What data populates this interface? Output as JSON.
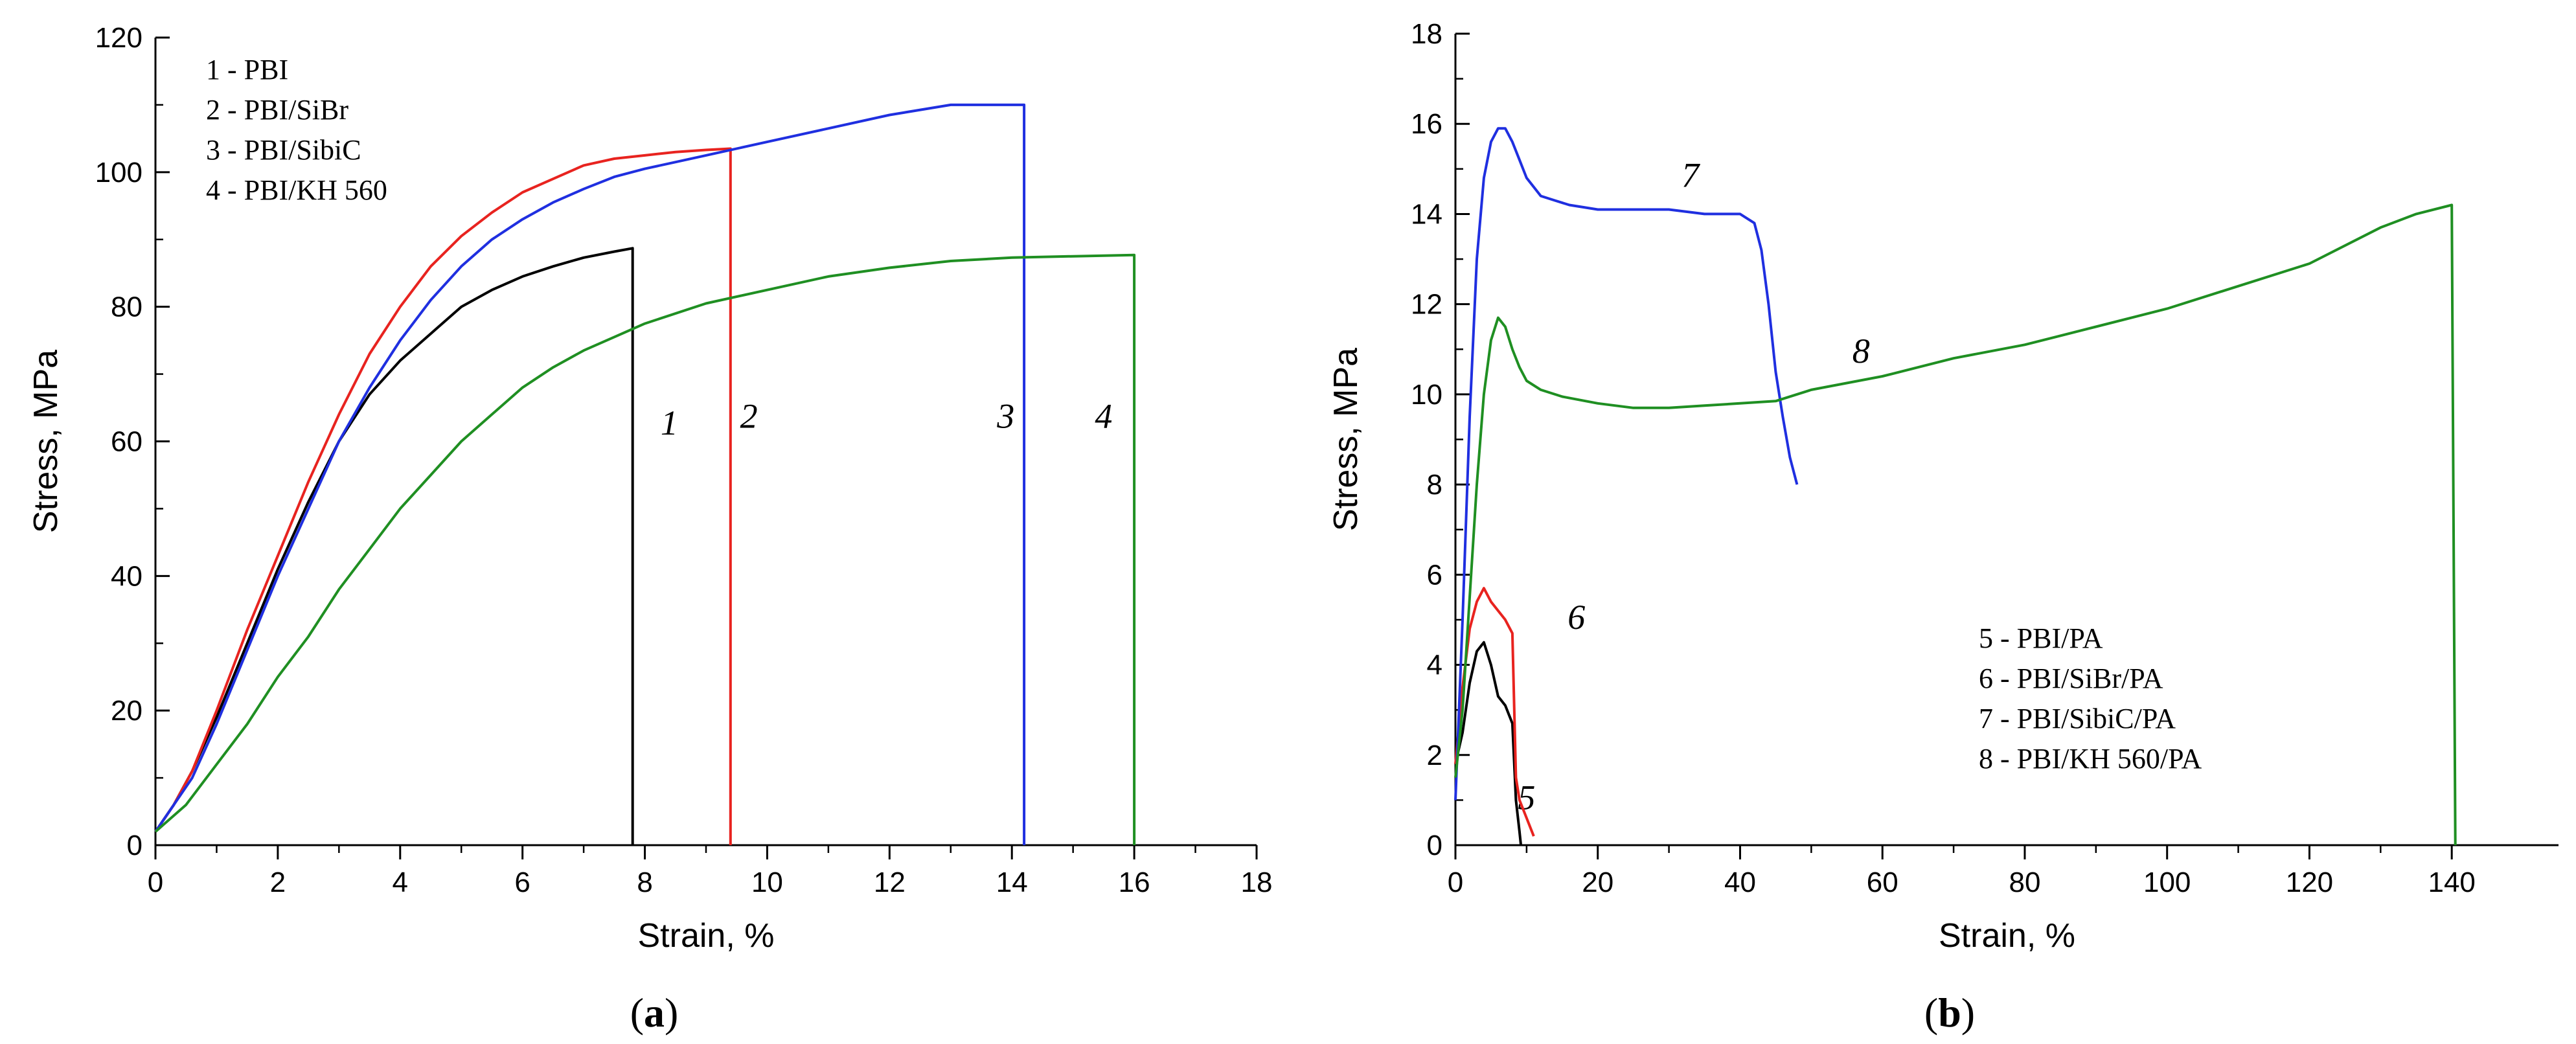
{
  "colors": {
    "black": "#000000",
    "red": "#e8231f",
    "blue": "#1f2fe0",
    "green": "#1f8f22",
    "axis": "#000000"
  },
  "chart_data": [
    {
      "type": "line",
      "panel": "a",
      "panel_label": {
        "open": "(",
        "letter": "a",
        "close": ")"
      },
      "xlabel": "Strain, %",
      "ylabel": "Stress, MPa",
      "xlim": [
        0,
        18
      ],
      "ylim": [
        0,
        120
      ],
      "xticks": [
        0,
        2,
        4,
        6,
        8,
        10,
        12,
        14,
        16,
        18
      ],
      "yticks": [
        0,
        20,
        40,
        60,
        80,
        100,
        120
      ],
      "legend": [
        "1 - PBI",
        "2 - PBI/SiBr",
        "3 - PBI/SibiC",
        "4 - PBI/KH 560"
      ],
      "legend_position": "top-left",
      "series": [
        {
          "name": "1 - PBI",
          "label": "1",
          "color": "#000000",
          "x": [
            0,
            0.3,
            0.6,
            1,
            1.5,
            2,
            2.5,
            3,
            3.5,
            4,
            4.5,
            5,
            5.5,
            6,
            6.5,
            7,
            7.5,
            7.8,
            7.8
          ],
          "y": [
            2,
            6,
            11,
            19,
            30,
            41,
            51,
            60,
            67,
            72,
            76,
            80,
            82.5,
            84.5,
            86,
            87.3,
            88.2,
            88.7,
            0
          ],
          "label_x": 8.4,
          "label_y": 61
        },
        {
          "name": "2 - PBI/SiBr",
          "label": "2",
          "color": "#e8231f",
          "x": [
            0,
            0.3,
            0.6,
            1,
            1.5,
            2,
            2.5,
            3,
            3.5,
            4,
            4.5,
            5,
            5.5,
            6,
            6.5,
            7,
            7.5,
            8,
            8.5,
            9,
            9.4,
            9.4
          ],
          "y": [
            2,
            6,
            11,
            20,
            32,
            43,
            54,
            64,
            73,
            80,
            86,
            90.5,
            94,
            97,
            99,
            101,
            102,
            102.5,
            103,
            103.3,
            103.5,
            0
          ],
          "label_x": 9.7,
          "label_y": 62
        },
        {
          "name": "3 - PBI/SibiC",
          "label": "3",
          "color": "#1f2fe0",
          "x": [
            0,
            0.3,
            0.6,
            1,
            1.5,
            2,
            2.5,
            3,
            3.5,
            4,
            4.5,
            5,
            5.5,
            6,
            6.5,
            7,
            7.5,
            8,
            9,
            10,
            11,
            12,
            13,
            14.2,
            14.2
          ],
          "y": [
            2,
            6,
            10,
            18,
            29,
            40,
            50,
            60,
            68,
            75,
            81,
            86,
            90,
            93,
            95.5,
            97.5,
            99.3,
            100.5,
            102.5,
            104.5,
            106.5,
            108.5,
            110,
            110,
            0
          ],
          "label_x": 13.9,
          "label_y": 62
        },
        {
          "name": "4 - PBI/KH 560",
          "label": "4",
          "color": "#1f8f22",
          "x": [
            0,
            0.5,
            1,
            1.5,
            2,
            2.5,
            3,
            3.5,
            4,
            4.5,
            5,
            5.5,
            6,
            6.5,
            7,
            7.5,
            8,
            9,
            10,
            11,
            12,
            13,
            14,
            15,
            16,
            16
          ],
          "y": [
            2,
            6,
            12,
            18,
            25,
            31,
            38,
            44,
            50,
            55,
            60,
            64,
            68,
            71,
            73.5,
            75.5,
            77.5,
            80.5,
            82.5,
            84.5,
            85.8,
            86.8,
            87.3,
            87.5,
            87.7,
            0
          ],
          "label_x": 15.5,
          "label_y": 62
        }
      ]
    },
    {
      "type": "line",
      "panel": "b",
      "panel_label": {
        "open": "(",
        "letter": "b",
        "close": ")"
      },
      "xlabel": "Strain, %",
      "ylabel": "Stress, MPa",
      "xlim": [
        0,
        155
      ],
      "ylim": [
        0,
        18
      ],
      "xticks": [
        0,
        20,
        40,
        60,
        80,
        100,
        120,
        140
      ],
      "yticks": [
        0,
        2,
        4,
        6,
        8,
        10,
        12,
        14,
        16,
        18
      ],
      "legend": [
        "5 - PBI/PA",
        "6 - PBI/SiBr/PA",
        "7 - PBI/SibiC/PA",
        "8 - PBI/KH 560/PA"
      ],
      "legend_position": "bottom-right",
      "series": [
        {
          "name": "5 - PBI/PA",
          "label": "5",
          "color": "#000000",
          "x": [
            0,
            1,
            2,
            3,
            4,
            5,
            6,
            7,
            8,
            8.5,
            9,
            9.2
          ],
          "y": [
            1.8,
            2.5,
            3.6,
            4.3,
            4.5,
            4.0,
            3.3,
            3.1,
            2.7,
            1.0,
            0.3,
            0
          ],
          "label_x": 10,
          "label_y": 0.8
        },
        {
          "name": "6 - PBI/SiBr/PA",
          "label": "6",
          "color": "#e8231f",
          "x": [
            0,
            1,
            2,
            3,
            4,
            5,
            6,
            7,
            8,
            8.5,
            9,
            10,
            11
          ],
          "y": [
            1.8,
            3.5,
            4.8,
            5.4,
            5.7,
            5.4,
            5.2,
            5.0,
            4.7,
            1.5,
            1.0,
            0.6,
            0.2
          ],
          "label_x": 17,
          "label_y": 4.8
        },
        {
          "name": "7 - PBI/SibiC/PA",
          "label": "7",
          "color": "#1f2fe0",
          "x": [
            0,
            1,
            2,
            3,
            4,
            5,
            6,
            7,
            8,
            9,
            10,
            12,
            14,
            16,
            18,
            20,
            25,
            30,
            35,
            40,
            42,
            43,
            44,
            45,
            46,
            47,
            48
          ],
          "y": [
            1.0,
            5.0,
            9.5,
            13.0,
            14.8,
            15.6,
            15.9,
            15.9,
            15.6,
            15.2,
            14.8,
            14.4,
            14.3,
            14.2,
            14.15,
            14.1,
            14.1,
            14.1,
            14.0,
            14.0,
            13.8,
            13.2,
            12.0,
            10.5,
            9.5,
            8.6,
            8.0
          ],
          "label_x": 33,
          "label_y": 14.6
        },
        {
          "name": "8 - PBI/KH 560/PA",
          "label": "8",
          "color": "#1f8f22",
          "x": [
            0,
            1,
            2,
            3,
            4,
            5,
            6,
            7,
            8,
            9,
            10,
            12,
            15,
            20,
            25,
            30,
            35,
            40,
            45,
            50,
            60,
            70,
            80,
            90,
            100,
            110,
            120,
            130,
            135,
            140,
            140.5
          ],
          "y": [
            1.5,
            3.0,
            5.5,
            8.0,
            10.0,
            11.2,
            11.7,
            11.5,
            11.0,
            10.6,
            10.3,
            10.1,
            9.95,
            9.8,
            9.7,
            9.7,
            9.75,
            9.8,
            9.85,
            10.1,
            10.4,
            10.8,
            11.1,
            11.5,
            11.9,
            12.4,
            12.9,
            13.7,
            14.0,
            14.2,
            0
          ],
          "label_x": 57,
          "label_y": 10.7
        }
      ]
    }
  ]
}
